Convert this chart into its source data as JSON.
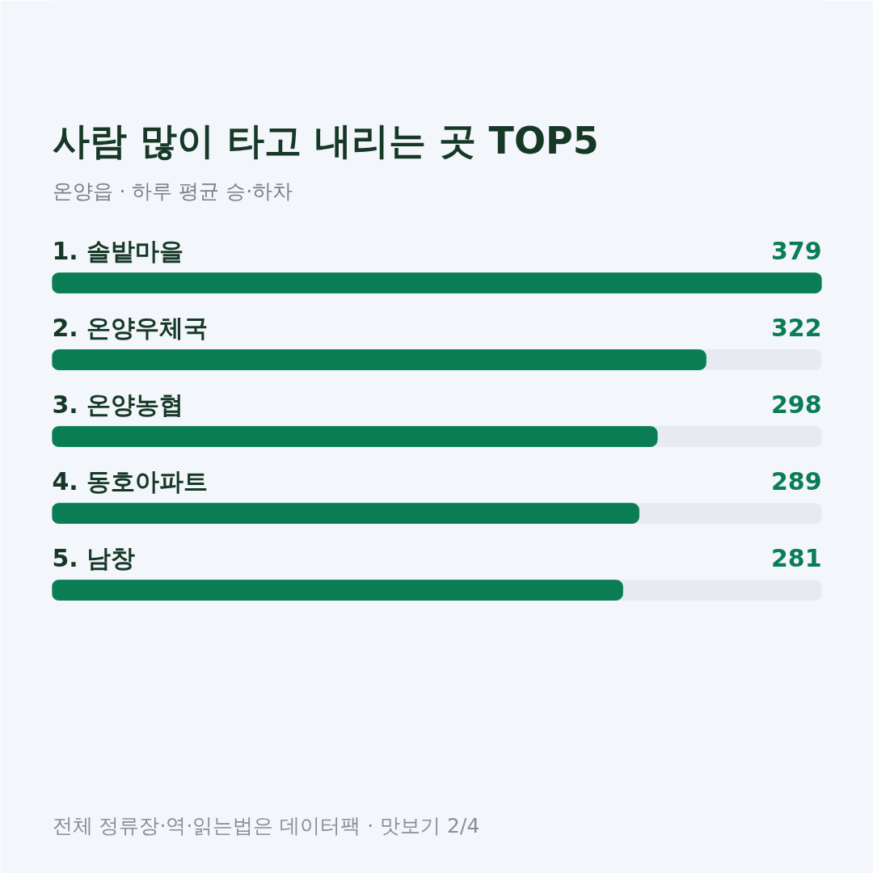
{
  "chart_data": {
    "type": "bar",
    "orientation": "horizontal",
    "title": "사람 많이 타고 내리는 곳 TOP5",
    "subtitle": "온양읍 · 하루 평균 승·하차",
    "categories": [
      "1. 솔밭마을",
      "2. 온양우체국",
      "3. 온양농협",
      "4. 동호아파트",
      "5. 남창"
    ],
    "values": [
      379,
      322,
      298,
      289,
      281
    ],
    "color": "#0b7d55",
    "data_labels": true,
    "annotations": [
      "전체 정류장·역·읽는법은 데이터팩 · 맛보기 2/4"
    ]
  }
}
